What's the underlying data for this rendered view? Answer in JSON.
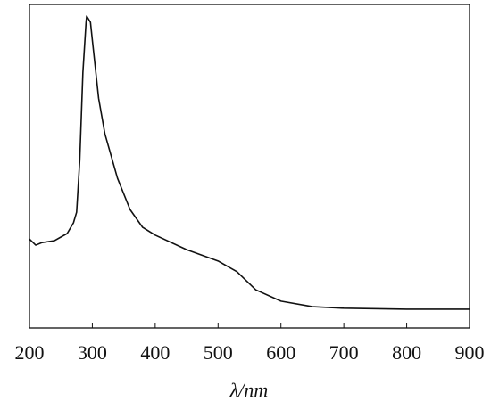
{
  "chart_data": {
    "type": "line",
    "x_label": "λ/nm",
    "x": [
      200,
      210,
      220,
      240,
      260,
      270,
      275,
      280,
      285,
      290,
      291,
      297,
      300,
      310,
      320,
      340,
      360,
      380,
      400,
      450,
      500,
      530,
      560,
      600,
      650,
      700,
      800,
      900
    ],
    "values": [
      27.5,
      25.6,
      26.4,
      27,
      29.2,
      32.5,
      35.8,
      51.8,
      79,
      94.5,
      96.4,
      94.5,
      89,
      71,
      60,
      46.3,
      36.6,
      31.1,
      28.7,
      24.2,
      20.7,
      17.4,
      11.8,
      8.3,
      6.6,
      6.1,
      5.8,
      5.8
    ],
    "color": "#111111",
    "xlim": [
      200,
      900
    ],
    "xticks": [
      200,
      300,
      400,
      500,
      600,
      700,
      800,
      900
    ],
    "ylim": [
      0,
      100
    ]
  }
}
